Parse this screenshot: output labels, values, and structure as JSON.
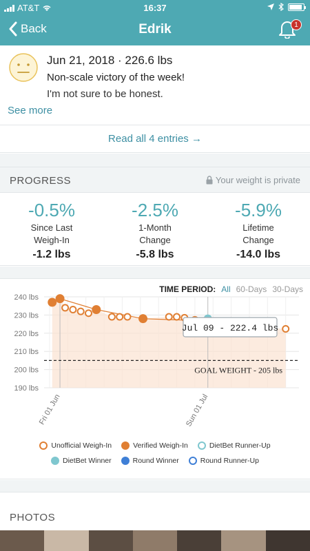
{
  "status": {
    "carrier": "AT&T",
    "time": "16:37"
  },
  "nav": {
    "back_label": "Back",
    "title": "Edrik",
    "notification_count": "1"
  },
  "entry": {
    "date_line": "Jun 21, 2018 · 226.6 lbs",
    "title": "Non-scale victory of the week!",
    "body": "I'm not sure to be honest.",
    "see_more": "See more",
    "read_all": "Read all 4 entries →"
  },
  "progress": {
    "title": "PROGRESS",
    "privacy_note": "Your weight is private",
    "stats": [
      {
        "pct": "-0.5%",
        "label1": "Since Last",
        "label2": "Weigh-In",
        "lbs": "-1.2 lbs"
      },
      {
        "pct": "-2.5%",
        "label1": "1-Month",
        "label2": "Change",
        "lbs": "-5.8 lbs"
      },
      {
        "pct": "-5.9%",
        "label1": "Lifetime",
        "label2": "Change",
        "lbs": "-14.0 lbs"
      }
    ]
  },
  "time_period": {
    "label": "TIME PERIOD:",
    "options": [
      "All",
      "60-Days",
      "30-Days"
    ],
    "selected": "All"
  },
  "chart_data": {
    "type": "scatter",
    "y_ticks": [
      "240 lbs",
      "230 lbs",
      "220 lbs",
      "210 lbs",
      "200 lbs",
      "190 lbs"
    ],
    "ylim": [
      190,
      240
    ],
    "x_ticks": [
      "Fri 01 Jun",
      "Sun 01 Jul"
    ],
    "goal": {
      "label": "GOAL WEIGHT - 205 lbs",
      "value": 205
    },
    "tooltip": "Jul 09 - 222.4 lbs",
    "series": [
      {
        "name": "Unofficial Weigh-In",
        "points": [
          {
            "day": 3,
            "value": 234
          },
          {
            "day": 4.5,
            "value": 233
          },
          {
            "day": 6,
            "value": 232
          },
          {
            "day": 7.5,
            "value": 231
          },
          {
            "day": 12,
            "value": 229
          },
          {
            "day": 13.5,
            "value": 229
          },
          {
            "day": 15,
            "value": 229
          },
          {
            "day": 23,
            "value": 229
          },
          {
            "day": 24.5,
            "value": 229
          },
          {
            "day": 26,
            "value": 228.5
          },
          {
            "day": 42,
            "value": 223
          },
          {
            "day": 45.5,
            "value": 222.4
          }
        ]
      },
      {
        "name": "Verified Weigh-In",
        "points": [
          {
            "day": 0.5,
            "value": 237
          },
          {
            "day": 2,
            "value": 239
          },
          {
            "day": 9,
            "value": 233
          },
          {
            "day": 18,
            "value": 228
          },
          {
            "day": 28,
            "value": 227
          }
        ]
      },
      {
        "name": "DietBet Runner-Up",
        "points": []
      },
      {
        "name": "DietBet Winner",
        "points": [
          {
            "day": 30.5,
            "value": 228
          }
        ]
      },
      {
        "name": "Round Winner",
        "points": []
      },
      {
        "name": "Round Runner-Up",
        "points": []
      }
    ]
  },
  "legend": {
    "row1": [
      "Unofficial Weigh-In",
      "Verified Weigh-In",
      "DietBet Runner-Up"
    ],
    "row2": [
      "DietBet Winner",
      "Round Winner",
      "Round Runner-Up"
    ]
  },
  "photos": {
    "title": "PHOTOS"
  },
  "colors": {
    "accent": "#4ea9b3",
    "orange": "#e07f33",
    "link": "#3d8fa3"
  }
}
